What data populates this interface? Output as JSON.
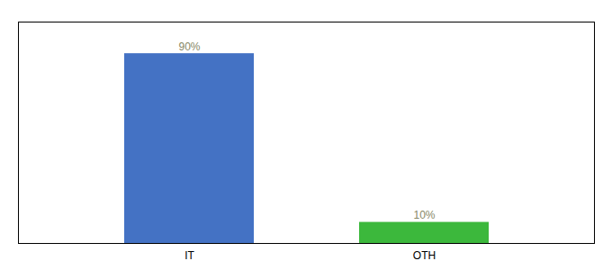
{
  "chart_data": {
    "type": "bar",
    "categories": [
      "IT",
      "OTH"
    ],
    "values": [
      90,
      10
    ],
    "value_labels": [
      "90%",
      "10%"
    ],
    "colors": [
      "#4472c4",
      "#3cb83c"
    ],
    "ylim": [
      0,
      105
    ],
    "yticks": [],
    "data_labels": true,
    "tick_labels": "x",
    "grid": false
  }
}
